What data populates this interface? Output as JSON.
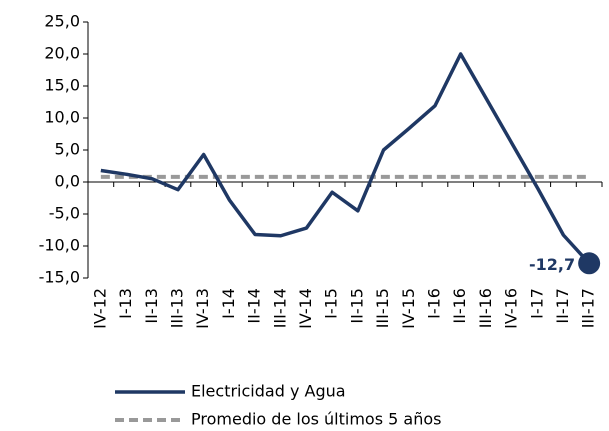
{
  "chart_data": {
    "type": "line",
    "categories": [
      "IV-12",
      "I-13",
      "II-13",
      "III-13",
      "IV-13",
      "I-14",
      "II-14",
      "III-14",
      "IV-14",
      "I-15",
      "II-15",
      "III-15",
      "IV-15",
      "I-16",
      "II-16",
      "III-16",
      "IV-16",
      "I-17",
      "II-17",
      "III-17"
    ],
    "series": [
      {
        "name": "Electricidad y Agua",
        "color": "#1f3864",
        "style": "solid",
        "values": [
          1.8,
          1.2,
          0.5,
          -1.2,
          4.3,
          -2.8,
          -8.2,
          -8.4,
          -7.2,
          -1.6,
          -4.5,
          5.0,
          8.4,
          11.9,
          20.0,
          13.0,
          6.0,
          -1.0,
          -8.3,
          -12.7
        ],
        "value_labels": [
          null,
          null,
          null,
          null,
          null,
          null,
          null,
          null,
          null,
          null,
          null,
          null,
          null,
          null,
          null,
          null,
          null,
          null,
          null,
          "-12,7"
        ]
      },
      {
        "name": "Promedio de los últimos 5 años",
        "color": "#999999",
        "style": "dashed",
        "values": [
          0.8,
          0.8,
          0.8,
          0.8,
          0.8,
          0.8,
          0.8,
          0.8,
          0.8,
          0.8,
          0.8,
          0.8,
          0.8,
          0.8,
          0.8,
          0.8,
          0.8,
          0.8,
          0.8,
          0.8
        ]
      }
    ],
    "ylim": [
      -15,
      25
    ],
    "yticks": [
      {
        "value": -15,
        "label": "-15,0"
      },
      {
        "value": -10,
        "label": "-10,0"
      },
      {
        "value": -5,
        "label": "-5,0"
      },
      {
        "value": 0,
        "label": "0,0"
      },
      {
        "value": 5,
        "label": "5,0"
      },
      {
        "value": 10,
        "label": "10,0"
      },
      {
        "value": 15,
        "label": "15,0"
      },
      {
        "value": 20,
        "label": "20,0"
      },
      {
        "value": 25,
        "label": "25,0"
      }
    ],
    "legend": "bottom"
  }
}
